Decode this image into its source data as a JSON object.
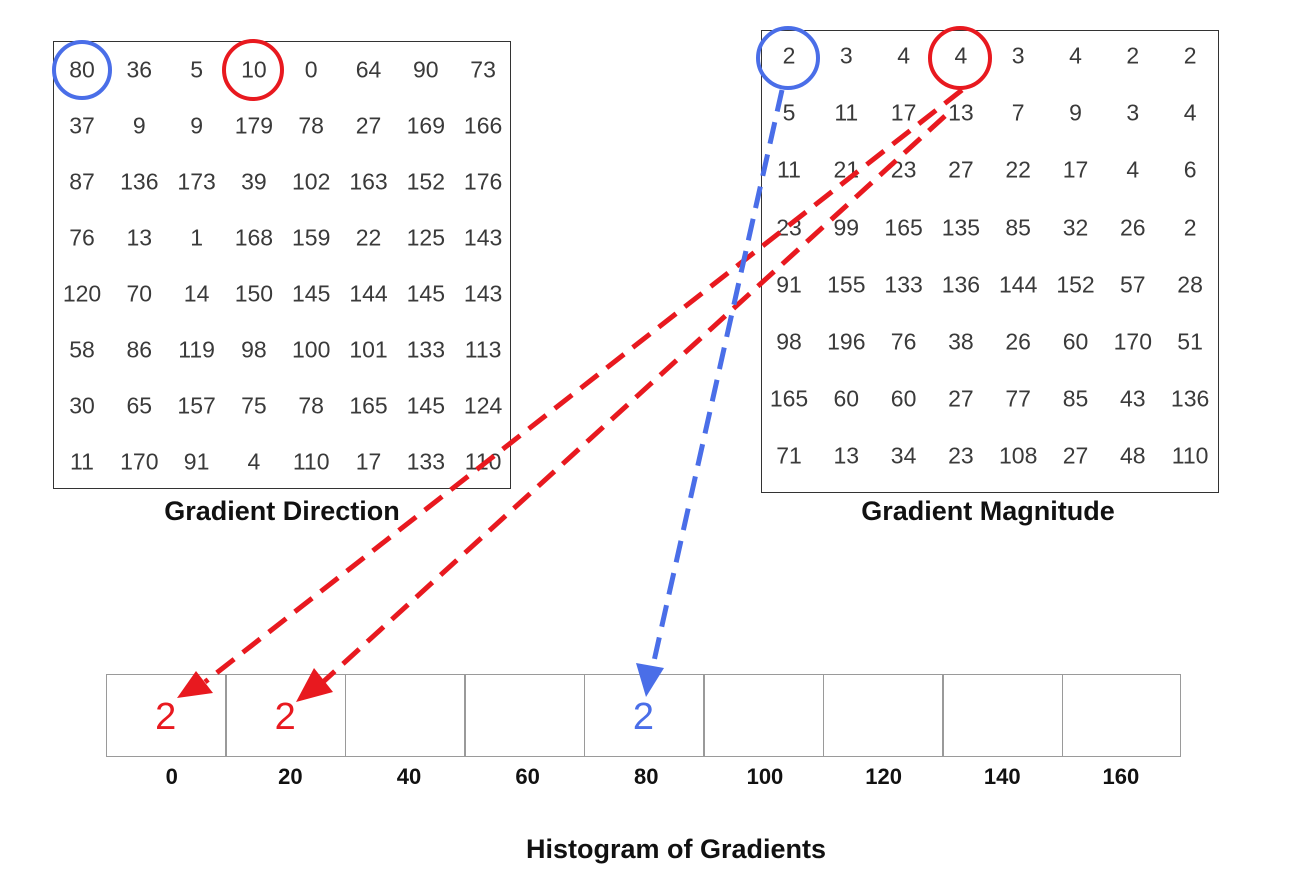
{
  "direction": {
    "caption": "Gradient Direction",
    "rows": [
      [
        "80",
        "36",
        "5",
        "10",
        "0",
        "64",
        "90",
        "73"
      ],
      [
        "37",
        "9",
        "9",
        "179",
        "78",
        "27",
        "169",
        "166"
      ],
      [
        "87",
        "136",
        "173",
        "39",
        "102",
        "163",
        "152",
        "176"
      ],
      [
        "76",
        "13",
        "1",
        "168",
        "159",
        "22",
        "125",
        "143"
      ],
      [
        "120",
        "70",
        "14",
        "150",
        "145",
        "144",
        "145",
        "143"
      ],
      [
        "58",
        "86",
        "119",
        "98",
        "100",
        "101",
        "133",
        "113"
      ],
      [
        "30",
        "65",
        "157",
        "75",
        "78",
        "165",
        "145",
        "124"
      ],
      [
        "11",
        "170",
        "91",
        "4",
        "110",
        "17",
        "133",
        "110"
      ]
    ]
  },
  "magnitude": {
    "caption": "Gradient Magnitude",
    "rows": [
      [
        "2",
        "3",
        "4",
        "4",
        "3",
        "4",
        "2",
        "2"
      ],
      [
        "5",
        "11",
        "17",
        "13",
        "7",
        "9",
        "3",
        "4"
      ],
      [
        "11",
        "21",
        "23",
        "27",
        "22",
        "17",
        "4",
        "6"
      ],
      [
        "23",
        "99",
        "165",
        "135",
        "85",
        "32",
        "26",
        "2"
      ],
      [
        "91",
        "155",
        "133",
        "136",
        "144",
        "152",
        "57",
        "28"
      ],
      [
        "98",
        "196",
        "76",
        "38",
        "26",
        "60",
        "170",
        "51"
      ],
      [
        "165",
        "60",
        "60",
        "27",
        "77",
        "85",
        "43",
        "136"
      ],
      [
        "71",
        "13",
        "34",
        "23",
        "108",
        "27",
        "48",
        "110"
      ]
    ]
  },
  "histogram": {
    "caption": "Histogram of Gradients",
    "bins": [
      "0",
      "20",
      "40",
      "60",
      "80",
      "100",
      "120",
      "140",
      "160"
    ],
    "values": [
      "2",
      "2",
      "",
      "",
      "2",
      "",
      "",
      "",
      ""
    ],
    "value_colors": [
      "#e8191f",
      "#e8191f",
      "",
      "",
      "#4a6ee8",
      "",
      "",
      "",
      ""
    ]
  },
  "colors": {
    "red": "#e8191f",
    "blue": "#4a6ee8"
  }
}
